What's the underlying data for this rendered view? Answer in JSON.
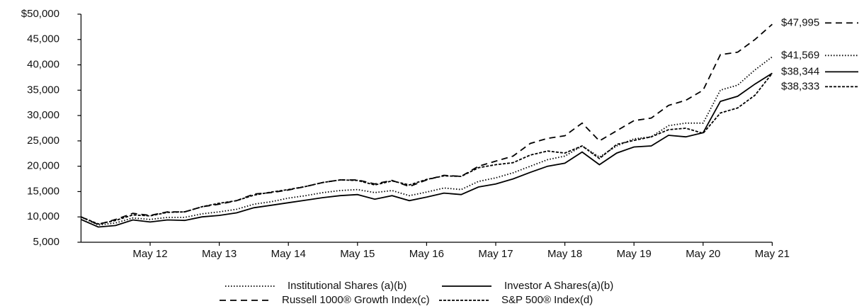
{
  "chart_data": {
    "type": "line",
    "categories": [
      null,
      null,
      null,
      null,
      "May 12",
      null,
      null,
      null,
      "May 13",
      null,
      null,
      null,
      "May 14",
      null,
      null,
      null,
      "May 15",
      null,
      null,
      null,
      "May 16",
      null,
      null,
      null,
      "May 17",
      null,
      null,
      null,
      "May 18",
      null,
      null,
      null,
      "May 19",
      null,
      null,
      null,
      "May 20",
      null,
      null,
      null,
      "May 21"
    ],
    "ylim": [
      5000,
      50000
    ],
    "yticks": [
      {
        "value": 5000,
        "label": "5,000"
      },
      {
        "value": 10000,
        "label": "10,000"
      },
      {
        "value": 15000,
        "label": "15,000"
      },
      {
        "value": 20000,
        "label": "20,000"
      },
      {
        "value": 25000,
        "label": "25,000"
      },
      {
        "value": 30000,
        "label": "30,000"
      },
      {
        "value": 35000,
        "label": "35,000"
      },
      {
        "value": 40000,
        "label": "40,000"
      },
      {
        "value": 45000,
        "label": "45,000"
      },
      {
        "value": 50000,
        "label": "$50,000"
      }
    ],
    "series": [
      {
        "name": "Institutional Shares (a)(b)",
        "color": "#000000",
        "dash": "dotted",
        "end_label": "$41,569",
        "values": [
          10000,
          8400,
          8800,
          9800,
          9500,
          9900,
          9900,
          10600,
          11000,
          11500,
          12500,
          13000,
          13700,
          14200,
          14800,
          15200,
          15400,
          14800,
          15200,
          14200,
          14900,
          15700,
          15400,
          17000,
          17700,
          18700,
          20000,
          21300,
          22000,
          24000,
          21800,
          24000,
          25400,
          25800,
          28000,
          28500,
          28500,
          35000,
          36000,
          39000,
          41569
        ]
      },
      {
        "name": "Investor A Shares(a)(b)",
        "color": "#000000",
        "dash": "solid",
        "end_label": "$38,344",
        "values": [
          9500,
          8000,
          8300,
          9400,
          9000,
          9400,
          9300,
          10000,
          10300,
          10800,
          11800,
          12300,
          12800,
          13300,
          13800,
          14200,
          14400,
          13500,
          14200,
          13200,
          13900,
          14700,
          14400,
          15900,
          16500,
          17500,
          18800,
          20000,
          20600,
          22800,
          20300,
          22600,
          23800,
          24000,
          26100,
          25800,
          26600,
          32800,
          33800,
          36200,
          38344
        ]
      },
      {
        "name": "Russell 1000® Growth Index(c)",
        "color": "#000000",
        "dash": "dashed",
        "end_label": "$47,995",
        "values": [
          10000,
          8500,
          9500,
          10700,
          10300,
          11000,
          11000,
          12000,
          12500,
          13200,
          14500,
          14800,
          15300,
          16000,
          16800,
          17300,
          17300,
          16500,
          17200,
          16000,
          17300,
          18200,
          18000,
          20000,
          21000,
          22000,
          24500,
          25500,
          26000,
          28500,
          25000,
          27000,
          29000,
          29500,
          32000,
          33000,
          35000,
          42000,
          42500,
          45000,
          47995
        ]
      },
      {
        "name": "S&P 500® Index(d)",
        "color": "#000000",
        "dash": "short-dashed",
        "end_label": "$38,333",
        "values": [
          10000,
          8600,
          9300,
          10400,
          10200,
          10900,
          11000,
          12000,
          12700,
          13200,
          14300,
          14900,
          15400,
          16000,
          16800,
          17300,
          17200,
          16300,
          17100,
          16300,
          17400,
          18100,
          18000,
          19700,
          20300,
          20700,
          22200,
          23000,
          22600,
          24000,
          21500,
          24300,
          25100,
          25800,
          27200,
          27500,
          26500,
          30500,
          31500,
          34000,
          38333
        ]
      }
    ]
  }
}
